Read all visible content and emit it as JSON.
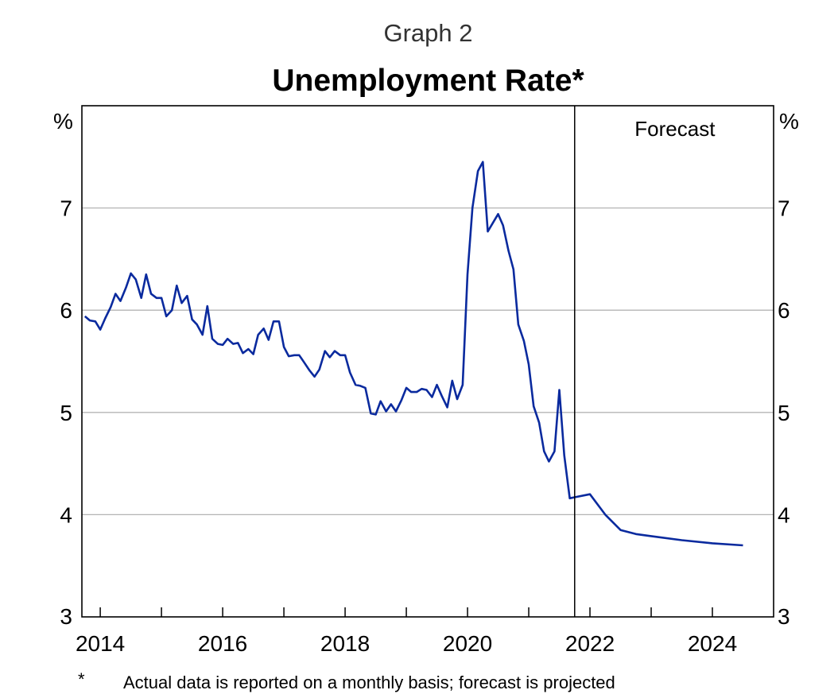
{
  "header": {
    "graph_label": "Graph 2",
    "title": "Unemployment Rate*"
  },
  "footnote": {
    "marker": "*",
    "text": "Actual data is reported on a monthly basis; forecast is projected"
  },
  "chart_data": {
    "type": "line",
    "title": "Unemployment Rate*",
    "unit_left": "%",
    "unit_right": "%",
    "forecast_label": "Forecast",
    "forecast_start": 2021.75,
    "x_range": [
      2013.7,
      2025.0
    ],
    "ylim": [
      3,
      8
    ],
    "y_ticks": [
      3,
      4,
      5,
      6,
      7
    ],
    "x_ticks": [
      2014,
      2016,
      2018,
      2020,
      2022,
      2024
    ],
    "x_minor_ticks": [
      2015,
      2017,
      2019,
      2021,
      2023
    ],
    "grid": "horizontal",
    "line_color": "#0a2a9e",
    "series": [
      {
        "points": [
          [
            2013.75,
            5.94
          ],
          [
            2013.83,
            5.9
          ],
          [
            2013.92,
            5.89
          ],
          [
            2014.0,
            5.81
          ],
          [
            2014.08,
            5.92
          ],
          [
            2014.17,
            6.03
          ],
          [
            2014.25,
            6.16
          ],
          [
            2014.33,
            6.09
          ],
          [
            2014.42,
            6.22
          ],
          [
            2014.5,
            6.36
          ],
          [
            2014.58,
            6.3
          ],
          [
            2014.67,
            6.12
          ],
          [
            2014.75,
            6.35
          ],
          [
            2014.83,
            6.16
          ],
          [
            2014.92,
            6.12
          ],
          [
            2015.0,
            6.12
          ],
          [
            2015.08,
            5.94
          ],
          [
            2015.17,
            6.0
          ],
          [
            2015.25,
            6.24
          ],
          [
            2015.33,
            6.07
          ],
          [
            2015.42,
            6.14
          ],
          [
            2015.5,
            5.91
          ],
          [
            2015.58,
            5.86
          ],
          [
            2015.67,
            5.76
          ],
          [
            2015.75,
            6.04
          ],
          [
            2015.83,
            5.72
          ],
          [
            2015.92,
            5.67
          ],
          [
            2016.0,
            5.66
          ],
          [
            2016.08,
            5.72
          ],
          [
            2016.17,
            5.67
          ],
          [
            2016.25,
            5.68
          ],
          [
            2016.33,
            5.58
          ],
          [
            2016.42,
            5.62
          ],
          [
            2016.5,
            5.57
          ],
          [
            2016.58,
            5.76
          ],
          [
            2016.67,
            5.82
          ],
          [
            2016.75,
            5.71
          ],
          [
            2016.83,
            5.89
          ],
          [
            2016.92,
            5.89
          ],
          [
            2017.0,
            5.64
          ],
          [
            2017.08,
            5.55
          ],
          [
            2017.17,
            5.56
          ],
          [
            2017.25,
            5.56
          ],
          [
            2017.33,
            5.49
          ],
          [
            2017.42,
            5.41
          ],
          [
            2017.5,
            5.35
          ],
          [
            2017.58,
            5.42
          ],
          [
            2017.67,
            5.6
          ],
          [
            2017.75,
            5.54
          ],
          [
            2017.83,
            5.6
          ],
          [
            2017.92,
            5.56
          ],
          [
            2018.0,
            5.56
          ],
          [
            2018.08,
            5.39
          ],
          [
            2018.17,
            5.27
          ],
          [
            2018.25,
            5.26
          ],
          [
            2018.33,
            5.24
          ],
          [
            2018.42,
            4.99
          ],
          [
            2018.5,
            4.98
          ],
          [
            2018.58,
            5.11
          ],
          [
            2018.67,
            5.01
          ],
          [
            2018.75,
            5.08
          ],
          [
            2018.83,
            5.01
          ],
          [
            2018.92,
            5.12
          ],
          [
            2019.0,
            5.24
          ],
          [
            2019.08,
            5.2
          ],
          [
            2019.17,
            5.2
          ],
          [
            2019.25,
            5.23
          ],
          [
            2019.33,
            5.22
          ],
          [
            2019.42,
            5.15
          ],
          [
            2019.5,
            5.27
          ],
          [
            2019.58,
            5.16
          ],
          [
            2019.67,
            5.05
          ],
          [
            2019.75,
            5.31
          ],
          [
            2019.83,
            5.13
          ],
          [
            2019.92,
            5.27
          ],
          [
            2020.0,
            6.35
          ],
          [
            2020.08,
            7.0
          ],
          [
            2020.17,
            7.36
          ],
          [
            2020.25,
            7.45
          ],
          [
            2020.33,
            6.77
          ],
          [
            2020.42,
            6.86
          ],
          [
            2020.5,
            6.94
          ],
          [
            2020.58,
            6.83
          ],
          [
            2020.67,
            6.58
          ],
          [
            2020.75,
            6.4
          ],
          [
            2020.83,
            5.86
          ],
          [
            2020.92,
            5.7
          ],
          [
            2021.0,
            5.47
          ],
          [
            2021.08,
            5.06
          ],
          [
            2021.17,
            4.9
          ],
          [
            2021.25,
            4.62
          ],
          [
            2021.33,
            4.52
          ],
          [
            2021.42,
            4.62
          ],
          [
            2021.5,
            5.22
          ],
          [
            2021.58,
            4.58
          ],
          [
            2021.67,
            4.16
          ],
          [
            2021.75,
            4.17
          ],
          [
            2022.0,
            4.2
          ],
          [
            2022.25,
            4.0
          ],
          [
            2022.5,
            3.85
          ],
          [
            2022.75,
            3.81
          ],
          [
            2023.0,
            3.79
          ],
          [
            2023.5,
            3.75
          ],
          [
            2024.0,
            3.72
          ],
          [
            2024.5,
            3.7
          ]
        ]
      }
    ]
  }
}
